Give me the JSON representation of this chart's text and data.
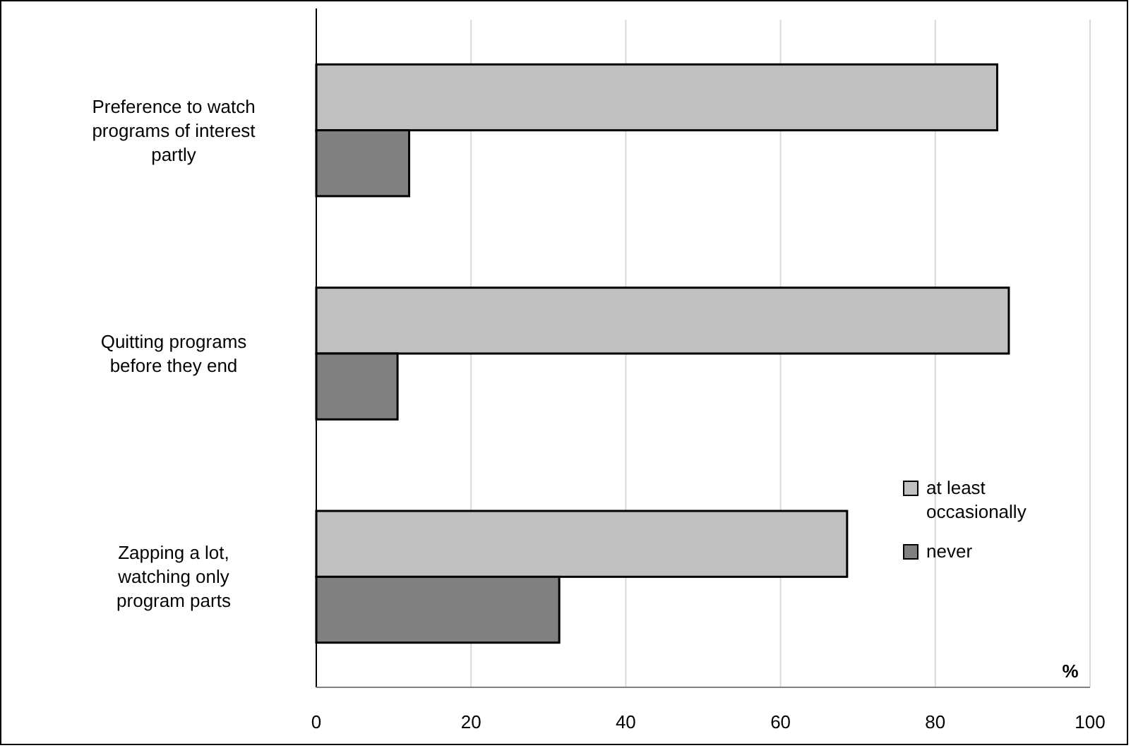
{
  "chart_data": {
    "type": "bar",
    "orientation": "horizontal",
    "categories": [
      "Preference to watch programs of interest partly",
      "Quitting programs before they end",
      "Zapping a lot, watching only program parts"
    ],
    "series": [
      {
        "name": "at least occasionally",
        "color": "#c0c0c0",
        "values": [
          88,
          89.5,
          68.6
        ]
      },
      {
        "name": "never",
        "color": "#808080",
        "values": [
          12,
          10.5,
          31.4
        ]
      }
    ],
    "xlim": [
      0,
      100
    ],
    "xticks": [
      0,
      20,
      40,
      60,
      80,
      100
    ],
    "xlabel": "%",
    "grid": "x",
    "legend": "bottom right"
  }
}
